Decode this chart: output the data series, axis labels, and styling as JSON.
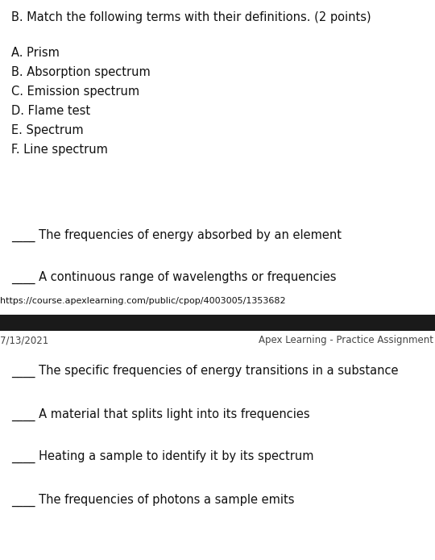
{
  "title": "B. Match the following terms with their definitions. (2 points)",
  "terms": [
    "A. Prism",
    "B. Absorption spectrum",
    "C. Emission spectrum",
    "D. Flame test",
    "E. Spectrum",
    "F. Line spectrum"
  ],
  "definitions_above": [
    "The frequencies of energy absorbed by an element",
    "A continuous range of wavelengths or frequencies"
  ],
  "definitions_below": [
    "The specific frequencies of energy transitions in a substance",
    "A material that splits light into its frequencies",
    "Heating a sample to identify it by its spectrum",
    "The frequencies of photons a sample emits"
  ],
  "url": "https://course.apexlearning.com/public/cpop/4003005/1353682",
  "date": "7/13/2021",
  "footer_right": "Apex Learning - Practice Assignment",
  "bg_color": "#ffffff",
  "text_color": "#111111",
  "bar_color": "#1a1a1a",
  "footer_text_color": "#444444",
  "title_fontsize": 10.5,
  "body_fontsize": 10.5,
  "url_fontsize": 8.0,
  "footer_fontsize": 8.5,
  "blank": "____ "
}
